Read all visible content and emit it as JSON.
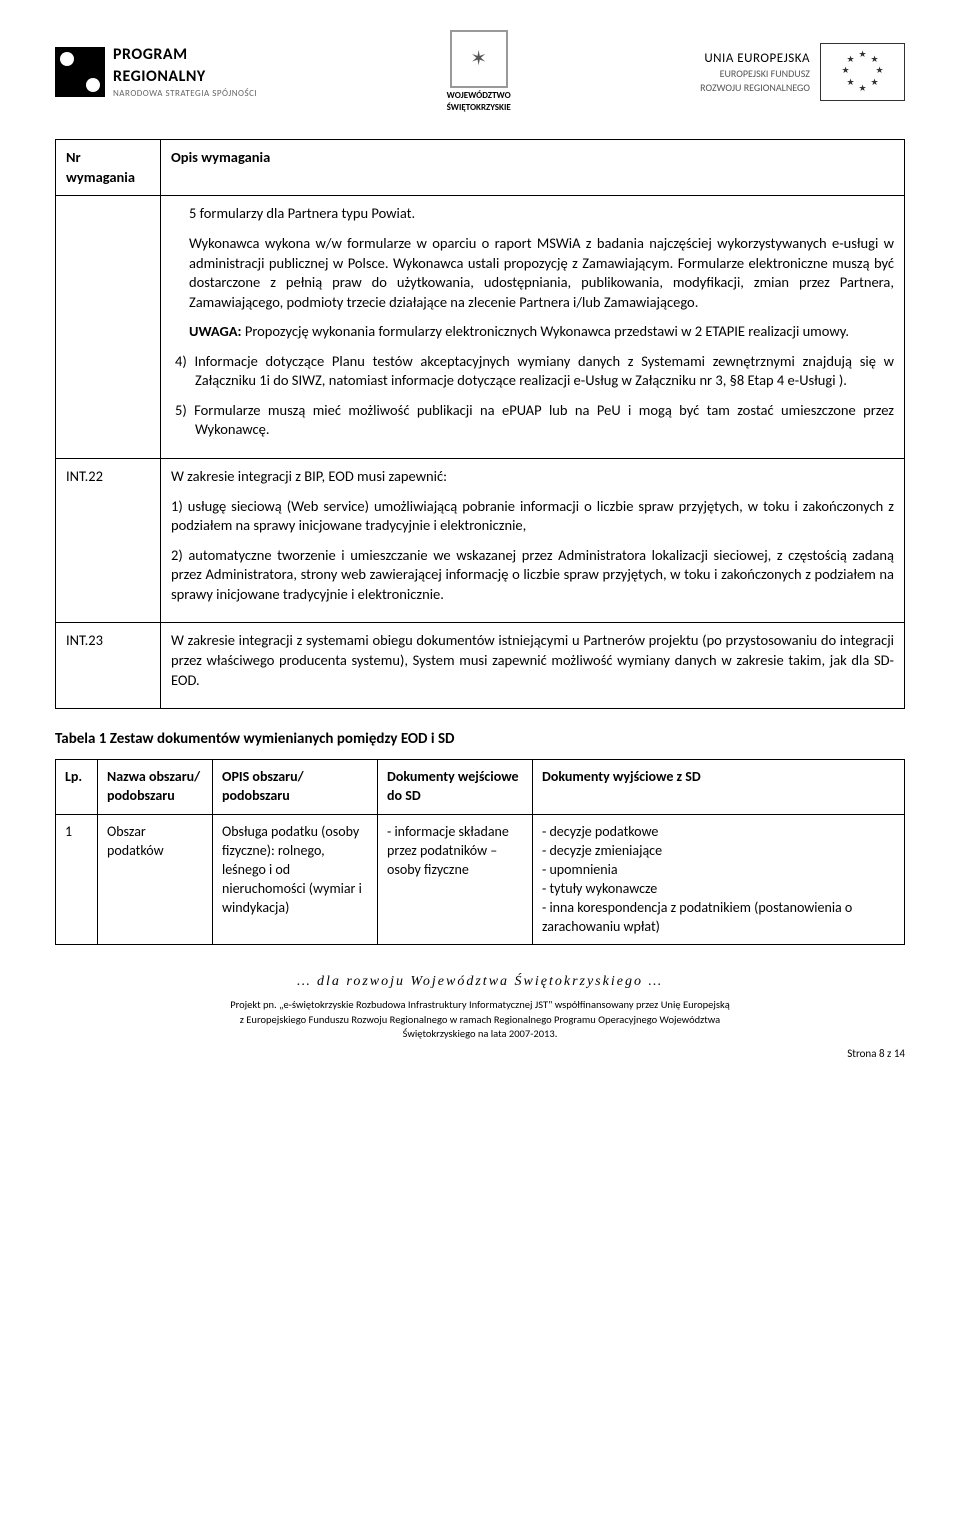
{
  "logos": {
    "left": {
      "l1": "PROGRAM",
      "l2": "REGIONALNY",
      "l3": "NARODOWA STRATEGIA SPÓJNOŚCI"
    },
    "center": {
      "l1": "WOJEWÓDZTWO",
      "l2": "ŚWIĘTOKRZYSKIE"
    },
    "right": {
      "l1": "UNIA EUROPEJSKA",
      "l2": "EUROPEJSKI FUNDUSZ",
      "l3": "ROZWOJU REGIONALNEGO"
    }
  },
  "main_table": {
    "header": {
      "col1": "Nr wymagania",
      "col2": "Opis wymagania"
    },
    "rows": [
      {
        "nr": "",
        "paras": [
          {
            "cls": "sub",
            "text": "5 formularzy dla Partnera typu Powiat."
          },
          {
            "cls": "sub",
            "text": "Wykonawca wykona w/w formularze w oparciu o raport MSWiA z badania najczęściej wykorzystywanych e-usługi w administracji publicznej w Polsce. Wykonawca ustali propozycję z Zamawiającym. Formularze elektroniczne muszą być dostarczone z pełnią praw do użytkowania, udostępniania, publikowania, modyfikacji, zmian przez Partnera, Zamawiającego, podmioty trzecie działające na zlecenie Partnera i/lub Zamawiającego."
          },
          {
            "cls": "sub",
            "text": "UWAGA: Propozycję wykonania formularzy elektronicznych Wykonawca przedstawi w 2 ETAPIE realizacji umowy."
          },
          {
            "cls": "numbered",
            "text": "4) Informacje dotyczące Planu testów akceptacyjnych wymiany danych z Systemami zewnętrznymi znajdują się w Załączniku 1i do SIWZ, natomiast informacje dotyczące realizacji e-Usług w Załączniku nr 3, §8 Etap 4 e-Usługi )."
          },
          {
            "cls": "numbered",
            "text": "5) Formularze muszą mieć możliwość publikacji na ePUAP lub na PeU i mogą być tam zostać umieszczone przez Wykonawcę."
          }
        ]
      },
      {
        "nr": "INT.22",
        "paras": [
          {
            "cls": "",
            "text": "W zakresie integracji z BIP, EOD musi zapewnić:"
          },
          {
            "cls": "",
            "text": "1) usługę sieciową (Web service) umożliwiającą pobranie informacji o liczbie spraw przyjętych, w toku i zakończonych z podziałem na sprawy inicjowane tradycyjnie i elektronicznie,"
          },
          {
            "cls": "",
            "text": "2) automatyczne tworzenie i umieszczanie we wskazanej przez Administratora lokalizacji sieciowej, z częstością zadaną przez Administratora, strony web zawierającej informację o liczbie spraw przyjętych, w toku i zakończonych z podziałem na sprawy inicjowane tradycyjnie i elektronicznie."
          }
        ]
      },
      {
        "nr": "INT.23",
        "paras": [
          {
            "cls": "",
            "text": "W zakresie integracji z systemami obiegu dokumentów istniejącymi u Partnerów projektu (po przystosowaniu do integracji przez właściwego producenta systemu), System musi zapewnić możliwość wymiany danych w zakresie takim, jak dla SD-EOD."
          }
        ]
      }
    ]
  },
  "section_title": "Tabela 1 Zestaw dokumentów wymienianych pomiędzy EOD i SD",
  "doc_table": {
    "headers": [
      "Lp.",
      "Nazwa obszaru/ podobszaru",
      "OPIS obszaru/ podobszaru",
      "Dokumenty wejściowe do SD",
      "Dokumenty wyjściowe z SD"
    ],
    "rows": [
      {
        "lp": "1",
        "nazwa": "Obszar podatków",
        "opis": "Obsługa podatku (osoby fizyczne): rolnego, leśnego i od nieruchomości (wymiar i windykacja)",
        "wej": "- informacje składane przez podatników – osoby fizyczne",
        "wyj_lines": [
          "- decyzje podatkowe",
          "- decyzje zmieniające",
          "- upomnienia",
          "- tytuły wykonawcze",
          "- inna korespondencja z podatnikiem (postanowienia o zarachowaniu wpłat)"
        ]
      }
    ]
  },
  "footer": {
    "motto": "… dla rozwoju Województwa Świętokrzyskiego …",
    "line1": "Projekt pn. „e-świętokrzyskie Rozbudowa Infrastruktury Informatycznej JST\" współfinansowany przez Unię Europejską",
    "line2": "z Europejskiego Funduszu Rozwoju Regionalnego w ramach Regionalnego Programu Operacyjnego Województwa",
    "line3": "Świętokrzyskiego na lata 2007-2013.",
    "page": "Strona 8 z 14"
  }
}
